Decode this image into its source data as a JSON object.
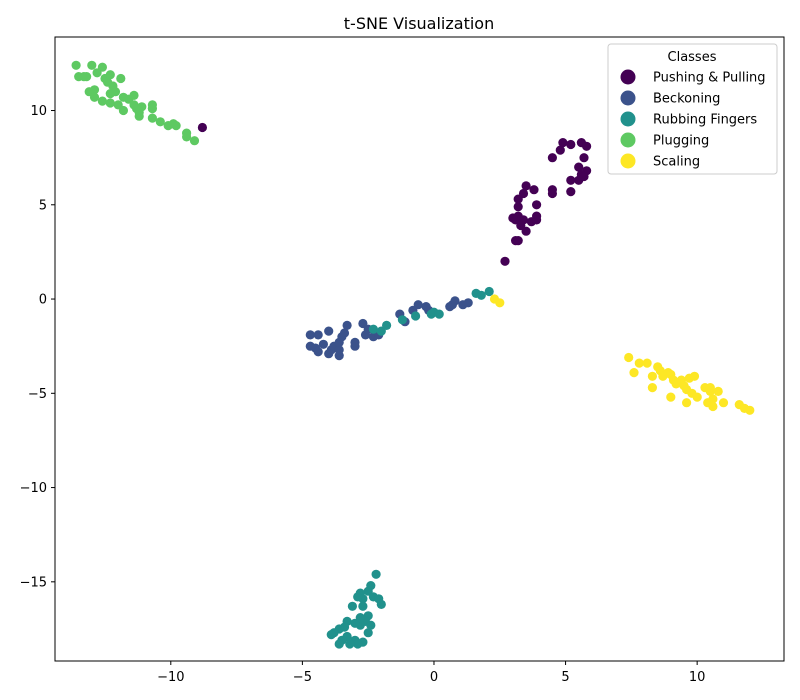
{
  "chart_data": {
    "type": "scatter",
    "title": "t-SNE Visualization",
    "xlabel": "",
    "ylabel": "",
    "xlim": [
      -14.4,
      13.3
    ],
    "ylim": [
      -19.2,
      13.9
    ],
    "xticks": [
      -10,
      -5,
      0,
      5,
      10
    ],
    "yticks": [
      -15,
      -10,
      -5,
      0,
      5,
      10
    ],
    "grid": false,
    "legend": {
      "title": "Classes",
      "placement": "top-right"
    },
    "series": [
      {
        "name": "Pushing & Pulling",
        "color": "#440154",
        "points": [
          [
            -8.8,
            9.1
          ],
          [
            2.7,
            2.0
          ],
          [
            3.1,
            3.1
          ],
          [
            3.2,
            3.1
          ],
          [
            3.1,
            4.2
          ],
          [
            3.2,
            4.4
          ],
          [
            3.4,
            4.2
          ],
          [
            3.2,
            4.9
          ],
          [
            3.2,
            5.3
          ],
          [
            3.4,
            5.6
          ],
          [
            3.5,
            6.0
          ],
          [
            3.8,
            5.8
          ],
          [
            3.9,
            5.0
          ],
          [
            3.7,
            4.1
          ],
          [
            3.9,
            4.4
          ],
          [
            3.5,
            3.6
          ],
          [
            4.5,
            5.8
          ],
          [
            4.5,
            5.6
          ],
          [
            4.5,
            7.5
          ],
          [
            4.8,
            7.9
          ],
          [
            4.9,
            8.3
          ],
          [
            5.2,
            8.2
          ],
          [
            5.6,
            8.3
          ],
          [
            5.8,
            8.1
          ],
          [
            5.7,
            7.5
          ],
          [
            5.5,
            7.0
          ],
          [
            5.8,
            6.8
          ],
          [
            5.6,
            6.6
          ],
          [
            5.5,
            6.3
          ],
          [
            5.2,
            6.3
          ],
          [
            5.2,
            5.7
          ],
          [
            3.0,
            4.3
          ],
          [
            3.3,
            3.9
          ],
          [
            3.9,
            4.2
          ],
          [
            5.7,
            6.5
          ]
        ]
      },
      {
        "name": "Beckoning",
        "color": "#3b528b",
        "points": [
          [
            -4.7,
            -1.9
          ],
          [
            -4.4,
            -1.9
          ],
          [
            -4.7,
            -2.5
          ],
          [
            -4.5,
            -2.6
          ],
          [
            -4.4,
            -2.8
          ],
          [
            -4.2,
            -2.4
          ],
          [
            -4.0,
            -2.9
          ],
          [
            -3.9,
            -2.7
          ],
          [
            -3.8,
            -2.5
          ],
          [
            -4.0,
            -1.7
          ],
          [
            -3.6,
            -3.0
          ],
          [
            -3.6,
            -2.7
          ],
          [
            -3.6,
            -2.3
          ],
          [
            -3.5,
            -2.0
          ],
          [
            -3.4,
            -1.8
          ],
          [
            -3.3,
            -1.4
          ],
          [
            -3.0,
            -2.5
          ],
          [
            -3.0,
            -2.3
          ],
          [
            -2.7,
            -1.3
          ],
          [
            -2.6,
            -1.9
          ],
          [
            -2.5,
            -1.6
          ],
          [
            -2.3,
            -2.0
          ],
          [
            -2.1,
            -1.9
          ],
          [
            -1.3,
            -0.8
          ],
          [
            -1.1,
            -1.2
          ],
          [
            -0.8,
            -0.6
          ],
          [
            -0.6,
            -0.3
          ],
          [
            -0.3,
            -0.4
          ],
          [
            -0.2,
            -0.6
          ],
          [
            0.6,
            -0.4
          ],
          [
            0.7,
            -0.3
          ],
          [
            0.8,
            -0.1
          ],
          [
            1.1,
            -0.3
          ],
          [
            1.3,
            -0.2
          ]
        ]
      },
      {
        "name": "Rubbing Fingers",
        "color": "#21918c",
        "points": [
          [
            -2.3,
            -1.6
          ],
          [
            -2.0,
            -1.7
          ],
          [
            -1.8,
            -1.4
          ],
          [
            -1.2,
            -1.1
          ],
          [
            -0.7,
            -0.9
          ],
          [
            -0.1,
            -0.8
          ],
          [
            0.0,
            -0.7
          ],
          [
            0.2,
            -0.8
          ],
          [
            1.6,
            0.3
          ],
          [
            1.8,
            0.2
          ],
          [
            2.1,
            0.4
          ],
          [
            -2.2,
            -14.6
          ],
          [
            -2.4,
            -15.2
          ],
          [
            -2.5,
            -15.5
          ],
          [
            -2.8,
            -15.6
          ],
          [
            -2.7,
            -15.9
          ],
          [
            -2.3,
            -15.8
          ],
          [
            -2.1,
            -15.9
          ],
          [
            -2.0,
            -16.2
          ],
          [
            -2.9,
            -15.8
          ],
          [
            -3.1,
            -16.3
          ],
          [
            -2.7,
            -16.3
          ],
          [
            -2.5,
            -16.8
          ],
          [
            -2.6,
            -17.1
          ],
          [
            -2.8,
            -17.3
          ],
          [
            -3.0,
            -17.2
          ],
          [
            -3.3,
            -17.1
          ],
          [
            -3.4,
            -17.4
          ],
          [
            -3.6,
            -17.5
          ],
          [
            -3.8,
            -17.7
          ],
          [
            -3.3,
            -17.9
          ],
          [
            -3.0,
            -18.1
          ],
          [
            -2.7,
            -18.2
          ],
          [
            -2.9,
            -18.3
          ],
          [
            -3.2,
            -18.3
          ],
          [
            -3.5,
            -18.1
          ],
          [
            -3.6,
            -18.3
          ],
          [
            -3.9,
            -17.8
          ],
          [
            -2.5,
            -17.7
          ],
          [
            -2.4,
            -17.3
          ],
          [
            -2.8,
            -16.9
          ]
        ]
      },
      {
        "name": "Plugging",
        "color": "#5ec962",
        "points": [
          [
            -13.6,
            12.4
          ],
          [
            -13.5,
            11.8
          ],
          [
            -13.3,
            11.8
          ],
          [
            -13.2,
            11.8
          ],
          [
            -13.0,
            12.4
          ],
          [
            -12.8,
            12.0
          ],
          [
            -12.6,
            12.3
          ],
          [
            -12.5,
            11.7
          ],
          [
            -12.3,
            11.9
          ],
          [
            -12.4,
            11.5
          ],
          [
            -12.2,
            11.3
          ],
          [
            -12.3,
            10.9
          ],
          [
            -12.1,
            11.0
          ],
          [
            -11.9,
            11.7
          ],
          [
            -12.9,
            11.1
          ],
          [
            -13.1,
            11.0
          ],
          [
            -12.9,
            10.7
          ],
          [
            -12.6,
            10.5
          ],
          [
            -12.3,
            10.4
          ],
          [
            -12.0,
            10.3
          ],
          [
            -11.8,
            10.0
          ],
          [
            -11.8,
            10.7
          ],
          [
            -11.6,
            10.6
          ],
          [
            -11.4,
            10.8
          ],
          [
            -11.3,
            10.1
          ],
          [
            -11.2,
            9.9
          ],
          [
            -11.1,
            10.2
          ],
          [
            -11.4,
            10.3
          ],
          [
            -10.7,
            10.3
          ],
          [
            -10.7,
            10.1
          ],
          [
            -10.7,
            9.6
          ],
          [
            -10.4,
            9.4
          ],
          [
            -10.1,
            9.2
          ],
          [
            -9.8,
            9.2
          ],
          [
            -9.9,
            9.3
          ],
          [
            -9.4,
            8.8
          ],
          [
            -9.4,
            8.6
          ],
          [
            -9.1,
            8.4
          ],
          [
            -11.2,
            9.7
          ]
        ]
      },
      {
        "name": "Scaling",
        "color": "#fde725",
        "points": [
          [
            2.3,
            0.0
          ],
          [
            2.5,
            -0.2
          ],
          [
            7.4,
            -3.1
          ],
          [
            7.6,
            -3.9
          ],
          [
            7.8,
            -3.4
          ],
          [
            8.1,
            -3.4
          ],
          [
            8.3,
            -4.1
          ],
          [
            8.3,
            -4.7
          ],
          [
            8.5,
            -3.6
          ],
          [
            8.6,
            -3.8
          ],
          [
            8.7,
            -4.1
          ],
          [
            8.9,
            -3.9
          ],
          [
            9.0,
            -4.0
          ],
          [
            9.1,
            -4.3
          ],
          [
            9.2,
            -4.5
          ],
          [
            9.0,
            -5.2
          ],
          [
            9.4,
            -4.3
          ],
          [
            9.5,
            -4.6
          ],
          [
            9.6,
            -4.8
          ],
          [
            9.7,
            -4.2
          ],
          [
            9.6,
            -5.5
          ],
          [
            9.8,
            -5.0
          ],
          [
            9.9,
            -4.1
          ],
          [
            10.0,
            -5.2
          ],
          [
            10.3,
            -4.7
          ],
          [
            10.5,
            -4.9
          ],
          [
            10.4,
            -5.5
          ],
          [
            10.6,
            -5.3
          ],
          [
            10.6,
            -5.7
          ],
          [
            10.8,
            -4.9
          ],
          [
            11.0,
            -5.5
          ],
          [
            11.6,
            -5.6
          ],
          [
            11.8,
            -5.8
          ],
          [
            12.0,
            -5.9
          ],
          [
            10.5,
            -4.7
          ]
        ]
      }
    ]
  }
}
